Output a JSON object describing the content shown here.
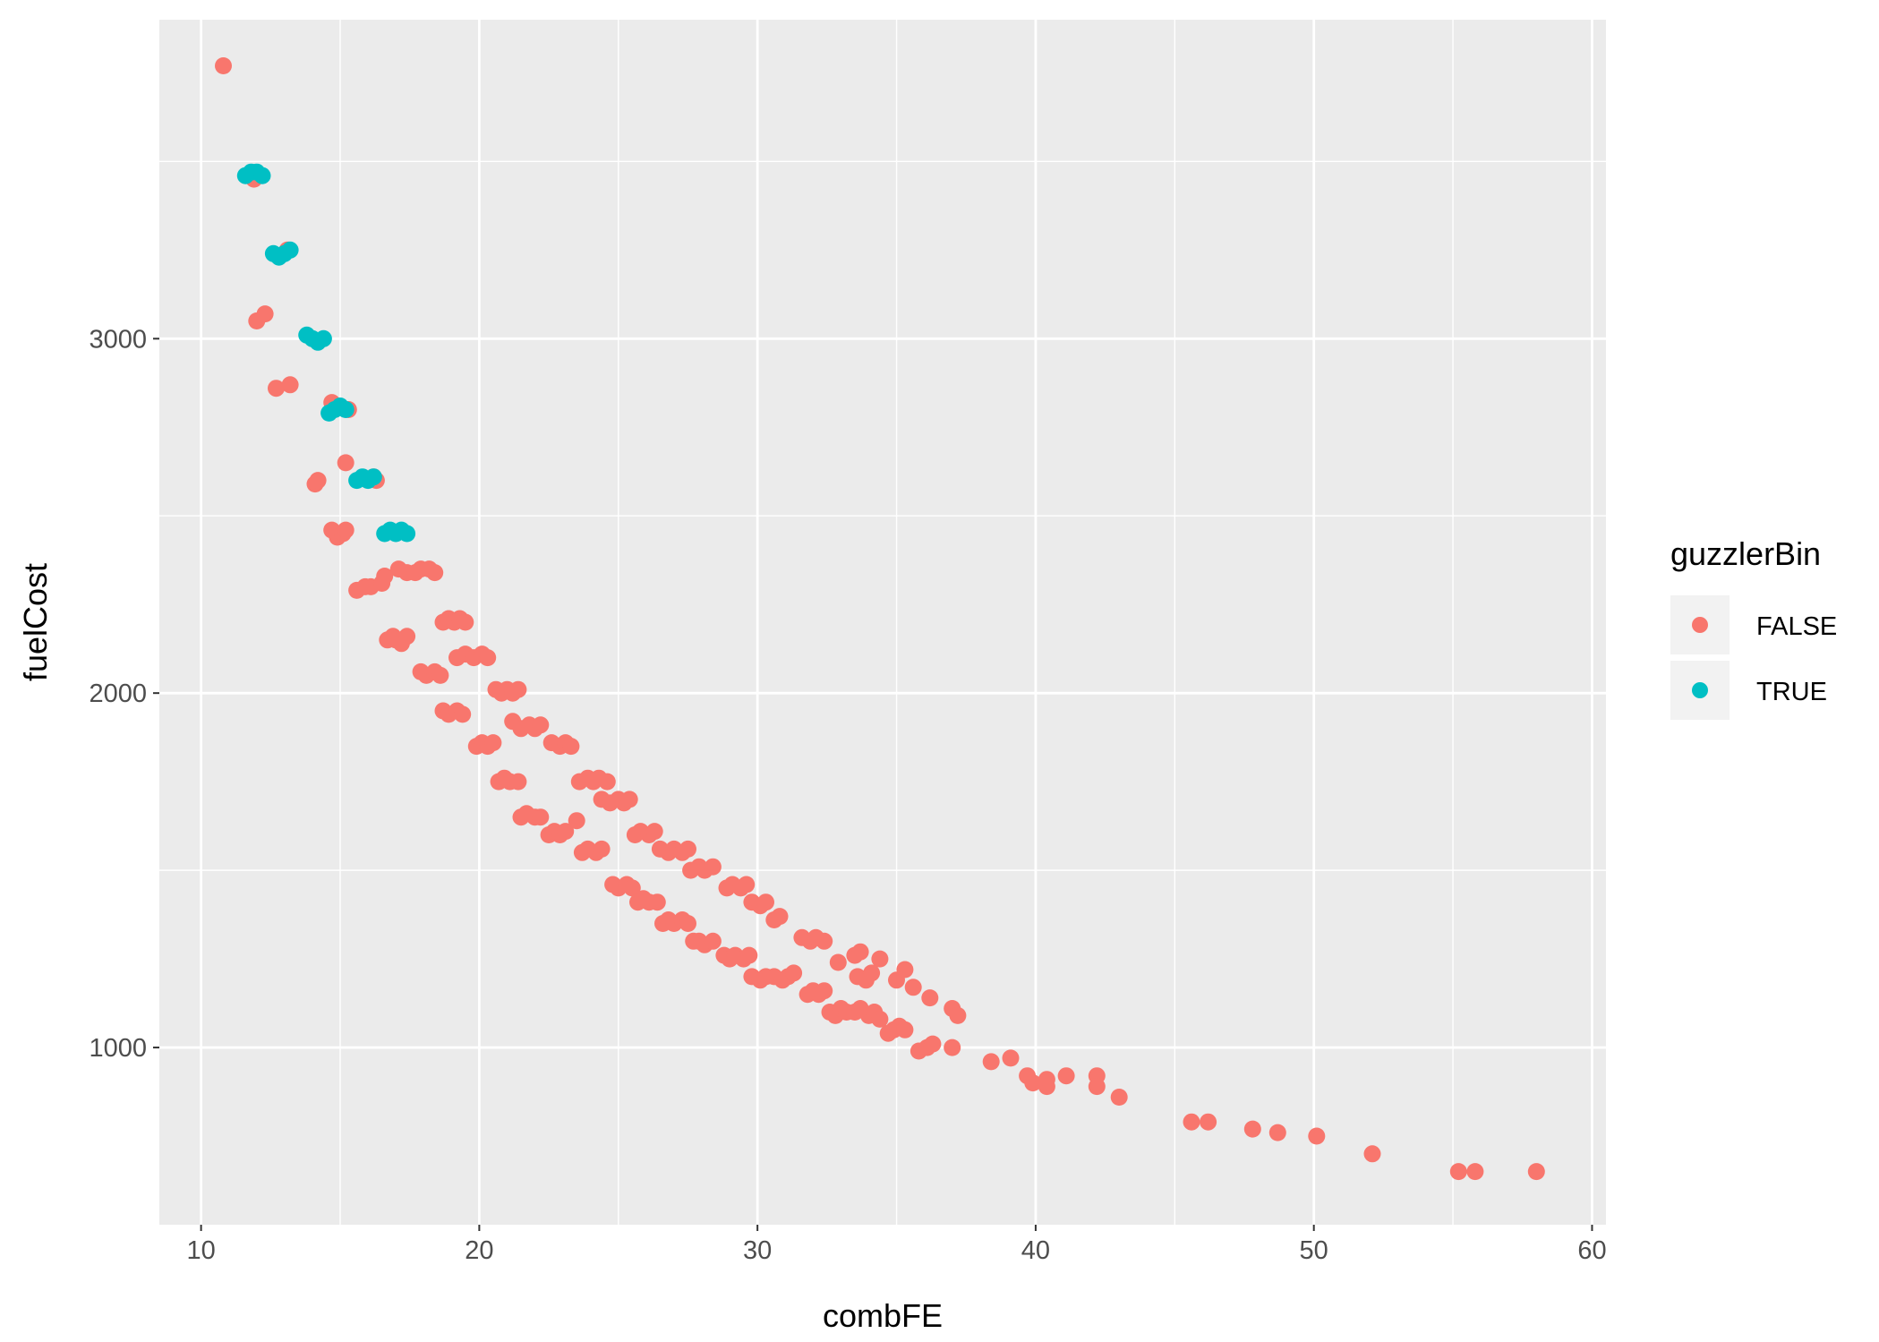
{
  "chart_data": {
    "type": "scatter",
    "xlabel": "combFE",
    "ylabel": "fuelCost",
    "xlim": [
      8.5,
      60.5
    ],
    "ylim": [
      500,
      3900
    ],
    "x_ticks": [
      10,
      20,
      30,
      40,
      50,
      60
    ],
    "y_ticks": [
      1000,
      2000,
      3000
    ],
    "grid": true,
    "legend": {
      "title": "guzzlerBin",
      "position": "right",
      "entries": [
        {
          "label": "FALSE",
          "color": "#F8766D"
        },
        {
          "label": "TRUE",
          "color": "#00BFC4"
        }
      ]
    },
    "series": [
      {
        "name": "FALSE",
        "color": "#F8766D",
        "points": [
          [
            10.8,
            3770
          ],
          [
            11.9,
            3450
          ],
          [
            12.0,
            3050
          ],
          [
            12.3,
            3070
          ],
          [
            12.7,
            2860
          ],
          [
            13.2,
            2870
          ],
          [
            13.1,
            3250
          ],
          [
            14.1,
            2590
          ],
          [
            14.2,
            2600
          ],
          [
            14.7,
            2820
          ],
          [
            14.7,
            2460
          ],
          [
            14.9,
            2440
          ],
          [
            15.1,
            2450
          ],
          [
            15.2,
            2460
          ],
          [
            15.2,
            2650
          ],
          [
            15.3,
            2800
          ],
          [
            15.6,
            2290
          ],
          [
            15.9,
            2300
          ],
          [
            16.1,
            2300
          ],
          [
            16.2,
            2610
          ],
          [
            16.3,
            2600
          ],
          [
            16.5,
            2310
          ],
          [
            16.6,
            2330
          ],
          [
            16.7,
            2150
          ],
          [
            16.9,
            2160
          ],
          [
            17.0,
            2150
          ],
          [
            17.2,
            2140
          ],
          [
            17.4,
            2160
          ],
          [
            17.1,
            2350
          ],
          [
            17.4,
            2340
          ],
          [
            17.7,
            2340
          ],
          [
            17.9,
            2350
          ],
          [
            18.2,
            2350
          ],
          [
            18.4,
            2340
          ],
          [
            17.9,
            2060
          ],
          [
            18.1,
            2050
          ],
          [
            18.4,
            2060
          ],
          [
            18.6,
            2050
          ],
          [
            18.7,
            2200
          ],
          [
            18.9,
            2210
          ],
          [
            19.1,
            2200
          ],
          [
            19.3,
            2210
          ],
          [
            19.5,
            2200
          ],
          [
            18.7,
            1950
          ],
          [
            18.9,
            1940
          ],
          [
            19.2,
            1950
          ],
          [
            19.4,
            1940
          ],
          [
            19.2,
            2100
          ],
          [
            19.5,
            2110
          ],
          [
            19.8,
            2100
          ],
          [
            20.1,
            2110
          ],
          [
            20.3,
            2100
          ],
          [
            19.9,
            1850
          ],
          [
            20.1,
            1860
          ],
          [
            20.3,
            1850
          ],
          [
            20.5,
            1860
          ],
          [
            20.6,
            2010
          ],
          [
            20.8,
            2000
          ],
          [
            21.0,
            2010
          ],
          [
            21.2,
            2000
          ],
          [
            21.4,
            2010
          ],
          [
            20.7,
            1750
          ],
          [
            20.9,
            1760
          ],
          [
            21.1,
            1750
          ],
          [
            21.4,
            1750
          ],
          [
            21.2,
            1920
          ],
          [
            21.5,
            1900
          ],
          [
            21.8,
            1910
          ],
          [
            22.0,
            1900
          ],
          [
            22.2,
            1910
          ],
          [
            21.5,
            1650
          ],
          [
            21.7,
            1660
          ],
          [
            22.0,
            1650
          ],
          [
            22.2,
            1650
          ],
          [
            22.6,
            1860
          ],
          [
            22.9,
            1850
          ],
          [
            23.1,
            1860
          ],
          [
            23.3,
            1850
          ],
          [
            22.5,
            1600
          ],
          [
            22.7,
            1610
          ],
          [
            22.9,
            1600
          ],
          [
            23.1,
            1610
          ],
          [
            23.5,
            1640
          ],
          [
            23.6,
            1750
          ],
          [
            23.9,
            1760
          ],
          [
            24.1,
            1750
          ],
          [
            24.3,
            1760
          ],
          [
            24.6,
            1750
          ],
          [
            23.7,
            1550
          ],
          [
            23.9,
            1560
          ],
          [
            24.2,
            1550
          ],
          [
            24.4,
            1560
          ],
          [
            24.4,
            1700
          ],
          [
            24.7,
            1690
          ],
          [
            25.0,
            1700
          ],
          [
            25.2,
            1690
          ],
          [
            25.4,
            1700
          ],
          [
            24.8,
            1460
          ],
          [
            25.0,
            1450
          ],
          [
            25.3,
            1460
          ],
          [
            25.5,
            1450
          ],
          [
            25.6,
            1600
          ],
          [
            25.8,
            1610
          ],
          [
            26.1,
            1600
          ],
          [
            26.3,
            1610
          ],
          [
            25.7,
            1410
          ],
          [
            25.9,
            1420
          ],
          [
            26.1,
            1410
          ],
          [
            26.4,
            1410
          ],
          [
            26.5,
            1560
          ],
          [
            26.8,
            1550
          ],
          [
            27.0,
            1560
          ],
          [
            27.3,
            1550
          ],
          [
            27.5,
            1560
          ],
          [
            26.6,
            1350
          ],
          [
            26.8,
            1360
          ],
          [
            27.0,
            1350
          ],
          [
            27.3,
            1360
          ],
          [
            27.5,
            1350
          ],
          [
            27.6,
            1500
          ],
          [
            27.9,
            1510
          ],
          [
            28.1,
            1500
          ],
          [
            28.4,
            1510
          ],
          [
            27.7,
            1300
          ],
          [
            27.9,
            1300
          ],
          [
            28.1,
            1290
          ],
          [
            28.4,
            1300
          ],
          [
            28.9,
            1450
          ],
          [
            29.1,
            1460
          ],
          [
            29.4,
            1450
          ],
          [
            29.6,
            1460
          ],
          [
            28.8,
            1260
          ],
          [
            29.0,
            1250
          ],
          [
            29.2,
            1260
          ],
          [
            29.5,
            1250
          ],
          [
            29.7,
            1260
          ],
          [
            29.8,
            1410
          ],
          [
            30.1,
            1400
          ],
          [
            30.3,
            1410
          ],
          [
            30.6,
            1360
          ],
          [
            30.8,
            1370
          ],
          [
            29.8,
            1200
          ],
          [
            30.1,
            1190
          ],
          [
            30.3,
            1200
          ],
          [
            30.6,
            1200
          ],
          [
            30.9,
            1190
          ],
          [
            31.1,
            1200
          ],
          [
            31.3,
            1210
          ],
          [
            31.6,
            1310
          ],
          [
            31.9,
            1300
          ],
          [
            32.1,
            1310
          ],
          [
            32.4,
            1300
          ],
          [
            31.8,
            1150
          ],
          [
            32.0,
            1160
          ],
          [
            32.2,
            1150
          ],
          [
            32.4,
            1160
          ],
          [
            32.6,
            1100
          ],
          [
            32.8,
            1090
          ],
          [
            33.0,
            1110
          ],
          [
            33.2,
            1100
          ],
          [
            33.5,
            1100
          ],
          [
            33.7,
            1110
          ],
          [
            34.0,
            1090
          ],
          [
            34.2,
            1100
          ],
          [
            34.4,
            1080
          ],
          [
            32.9,
            1240
          ],
          [
            33.5,
            1260
          ],
          [
            33.7,
            1270
          ],
          [
            34.4,
            1250
          ],
          [
            33.6,
            1200
          ],
          [
            33.9,
            1190
          ],
          [
            34.1,
            1210
          ],
          [
            34.7,
            1040
          ],
          [
            34.9,
            1050
          ],
          [
            35.1,
            1060
          ],
          [
            35.3,
            1050
          ],
          [
            35.0,
            1190
          ],
          [
            35.3,
            1220
          ],
          [
            35.6,
            1170
          ],
          [
            36.2,
            1140
          ],
          [
            35.8,
            990
          ],
          [
            36.1,
            1000
          ],
          [
            36.3,
            1010
          ],
          [
            37.0,
            1000
          ],
          [
            37.0,
            1110
          ],
          [
            37.2,
            1090
          ],
          [
            38.4,
            960
          ],
          [
            39.1,
            970
          ],
          [
            39.7,
            920
          ],
          [
            39.9,
            900
          ],
          [
            40.4,
            910
          ],
          [
            40.4,
            890
          ],
          [
            41.1,
            920
          ],
          [
            42.2,
            920
          ],
          [
            42.2,
            890
          ],
          [
            43.0,
            860
          ],
          [
            45.6,
            790
          ],
          [
            46.2,
            790
          ],
          [
            47.8,
            770
          ],
          [
            48.7,
            760
          ],
          [
            50.1,
            750
          ],
          [
            52.1,
            700
          ],
          [
            55.2,
            650
          ],
          [
            55.8,
            650
          ],
          [
            58.0,
            650
          ]
        ]
      },
      {
        "name": "TRUE",
        "color": "#00BFC4",
        "points": [
          [
            11.6,
            3460
          ],
          [
            11.8,
            3470
          ],
          [
            12.0,
            3470
          ],
          [
            12.2,
            3460
          ],
          [
            12.6,
            3240
          ],
          [
            12.8,
            3230
          ],
          [
            13.0,
            3240
          ],
          [
            13.2,
            3250
          ],
          [
            13.8,
            3010
          ],
          [
            14.0,
            3000
          ],
          [
            14.2,
            2990
          ],
          [
            14.4,
            3000
          ],
          [
            14.6,
            2790
          ],
          [
            14.8,
            2800
          ],
          [
            15.0,
            2810
          ],
          [
            15.2,
            2800
          ],
          [
            15.6,
            2600
          ],
          [
            15.8,
            2610
          ],
          [
            16.0,
            2600
          ],
          [
            16.2,
            2610
          ],
          [
            16.6,
            2450
          ],
          [
            16.8,
            2460
          ],
          [
            17.0,
            2450
          ],
          [
            17.2,
            2460
          ],
          [
            17.4,
            2450
          ]
        ]
      }
    ]
  }
}
